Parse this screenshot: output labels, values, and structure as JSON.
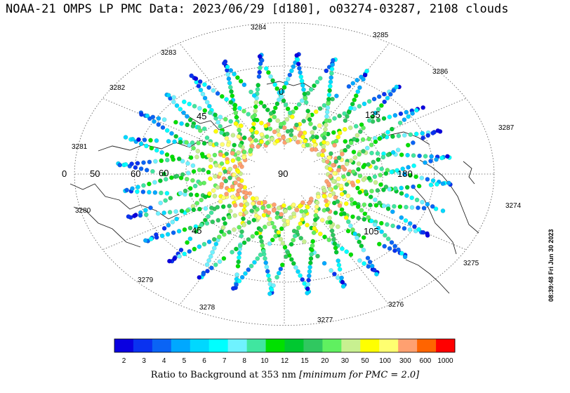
{
  "title": "NOAA-21 OMPS LP PMC Data: 2023/06/29 [d180], o03274-03287, 2108 clouds",
  "side_stamp": "08:39:48 Fri Jun 30 2023",
  "colorbar": {
    "label_main": "Ratio to Background at 353 nm ",
    "label_note": "[minimum for PMC = 2.0]",
    "ticks": [
      "2",
      "3",
      "4",
      "5",
      "6",
      "7",
      "8",
      "10",
      "12",
      "15",
      "20",
      "30",
      "50",
      "100",
      "300",
      "600",
      "1000"
    ],
    "colors": [
      "#0a00e0",
      "#0a32f0",
      "#0a64f5",
      "#00a8ff",
      "#00d8ff",
      "#00ffff",
      "#6ff2ff",
      "#40e6a0",
      "#00e000",
      "#00c830",
      "#30c860",
      "#60f060",
      "#c8f090",
      "#ffff00",
      "#ffff70",
      "#ffa070",
      "#ff6400",
      "#ff0000"
    ]
  },
  "chart_data": {
    "type": "scatter",
    "title": "NOAA-21 OMPS LP PMC Data: 2023/06/29 [d180], o03274-03287, 2108 clouds",
    "projection": "north-polar stereographic",
    "center_label": "90",
    "orbit_labels": [
      "3274",
      "3275",
      "3276",
      "3277",
      "3278",
      "3279",
      "3280",
      "3281",
      "3282",
      "3283",
      "3284",
      "3285",
      "3286",
      "3287"
    ],
    "longitude_labels": [
      "0",
      "50",
      "60",
      "180"
    ],
    "latitude_labels": [
      "45",
      "45",
      "60",
      "105",
      "135",
      "0"
    ],
    "colorbar_ticks": [
      2,
      3,
      4,
      5,
      6,
      7,
      8,
      10,
      12,
      15,
      20,
      30,
      50,
      100,
      300,
      600,
      1000
    ],
    "colorbar_label": "Ratio to Background at 353 nm [minimum for PMC = 2.0]",
    "series": [
      {
        "values": []
      }
    ]
  }
}
